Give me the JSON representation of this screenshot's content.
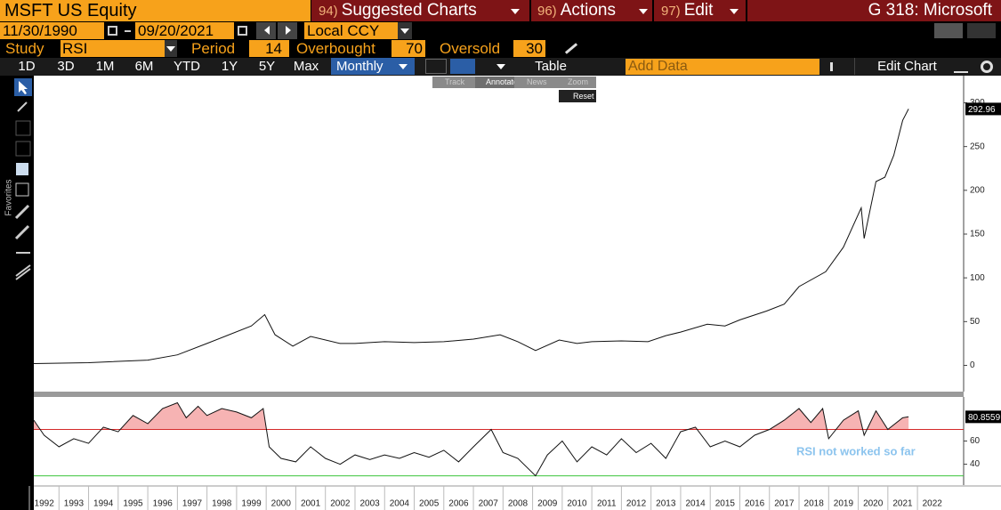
{
  "header": {
    "security": "MSFT US Equity",
    "menus": [
      {
        "num": "94)",
        "label": "Suggested Charts"
      },
      {
        "num": "96)",
        "label": "Actions"
      },
      {
        "num": "97)",
        "label": "Edit"
      }
    ],
    "title": "G 318: Microsoft"
  },
  "controls": {
    "start_date": "11/30/1990",
    "end_date": "09/20/2021",
    "currency": "Local CCY",
    "study_label": "Study",
    "study": "RSI",
    "period_label": "Period",
    "period": 14,
    "overbought_label": "Overbought",
    "overbought": 70,
    "oversold_label": "Oversold",
    "oversold": 30,
    "ranges": [
      "1D",
      "3D",
      "1M",
      "6M",
      "YTD",
      "1Y",
      "5Y",
      "Max"
    ],
    "frequency": "Monthly",
    "table": "Table",
    "add_data": "Add Data",
    "edit_chart": "Edit Chart"
  },
  "toolbar": {
    "side_label": "Favorites",
    "chart_tools": [
      "Track",
      "Annotate",
      "News",
      "Zoom"
    ],
    "reset": "Reset"
  },
  "chart_data": [
    {
      "type": "line",
      "color": "#111111",
      "x": [
        1992.15,
        1994,
        1996,
        1997,
        1998,
        1999.5,
        1999.95,
        2000.3,
        2000.9,
        2001.5,
        2002.5,
        2003,
        2004,
        2005,
        2006,
        2007,
        2007.9,
        2008.5,
        2009.1,
        2009.9,
        2010.5,
        2011,
        2012,
        2012.9,
        2013.5,
        2014,
        2014.9,
        2015.5,
        2016,
        2016.9,
        2017.5,
        2018,
        2018.9,
        2019.5,
        2020.1,
        2020.2,
        2020.6,
        2020.9,
        2021.2,
        2021.5,
        2021.7
      ],
      "values": [
        2,
        3,
        6,
        12,
        25,
        45,
        58,
        35,
        22,
        33,
        25,
        25,
        27,
        26,
        27,
        30,
        35,
        27,
        17,
        29,
        25,
        27,
        28,
        27,
        34,
        38,
        47,
        45,
        52,
        62,
        70,
        90,
        107,
        135,
        180,
        145,
        210,
        215,
        240,
        280,
        292.96
      ],
      "xlim": [
        1992.15,
        2023.56
      ],
      "ylim": [
        -30,
        331
      ],
      "yticks": [
        0,
        50,
        100,
        150,
        200,
        250,
        300
      ]
    },
    {
      "type": "line",
      "color": "#111111",
      "overbought_color": "#d42a2a",
      "oversold_color": "#3cc43c",
      "fill_color": "#f6b3b3",
      "annotation": "RSI not worked so far",
      "x": [
        1992.15,
        1992.5,
        1993,
        1993.5,
        1994,
        1994.5,
        1995,
        1995.5,
        1996,
        1996.5,
        1997,
        1997.3,
        1997.7,
        1998,
        1998.5,
        1999,
        1999.5,
        1999.9,
        2000.1,
        2000.5,
        2001,
        2001.5,
        2002,
        2002.5,
        2003,
        2003.5,
        2004,
        2004.5,
        2005,
        2005.5,
        2006,
        2006.5,
        2007,
        2007.6,
        2008,
        2008.5,
        2009.1,
        2009.5,
        2010,
        2010.5,
        2011,
        2011.5,
        2012,
        2012.5,
        2013,
        2013.5,
        2014,
        2014.5,
        2015,
        2015.5,
        2016,
        2016.5,
        2017,
        2017.5,
        2018,
        2018.4,
        2018.8,
        2019,
        2019.5,
        2020,
        2020.2,
        2020.6,
        2021,
        2021.5,
        2021.7
      ],
      "values": [
        78,
        65,
        55,
        62,
        58,
        72,
        68,
        82,
        75,
        88,
        93,
        80,
        90,
        82,
        88,
        85,
        80,
        88,
        55,
        45,
        42,
        55,
        45,
        40,
        48,
        44,
        48,
        45,
        50,
        46,
        52,
        42,
        55,
        70,
        50,
        45,
        30,
        48,
        60,
        42,
        55,
        48,
        62,
        50,
        58,
        45,
        68,
        72,
        55,
        60,
        55,
        65,
        70,
        78,
        88,
        76,
        88,
        62,
        78,
        86,
        65,
        86,
        70,
        80,
        80.8559
      ],
      "xlim": [
        1992.15,
        2023.56
      ],
      "ylim": [
        22,
        98
      ],
      "yticks": [
        40,
        60
      ],
      "xticks": [
        1992,
        1993,
        1994,
        1995,
        1996,
        1997,
        1998,
        1999,
        2000,
        2001,
        2002,
        2003,
        2004,
        2005,
        2006,
        2007,
        2008,
        2009,
        2010,
        2011,
        2012,
        2013,
        2014,
        2015,
        2016,
        2017,
        2018,
        2019,
        2020,
        2021,
        2022
      ]
    }
  ]
}
